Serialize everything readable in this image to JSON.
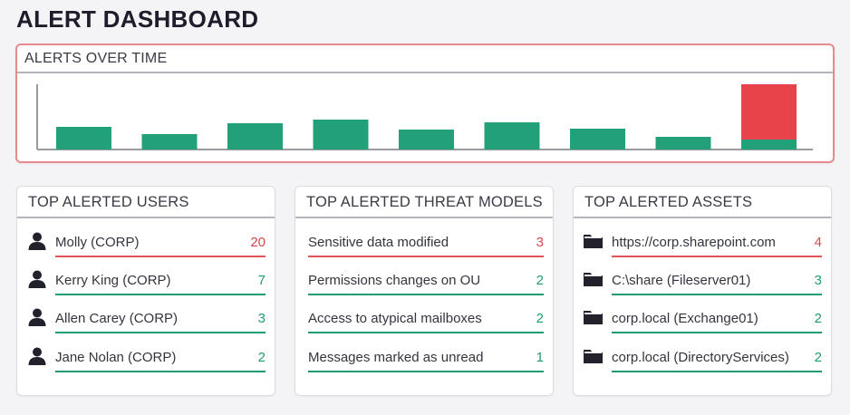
{
  "page": {
    "title": "ALERT DASHBOARD"
  },
  "colors": {
    "normal": "#21a07a",
    "alert": "#e8424a",
    "alert_border": "#e58a8f",
    "separator": "#b5b5bd"
  },
  "alerts_over_time": {
    "title": "ALERTS OVER TIME",
    "chart_data": {
      "type": "bar",
      "stacked": true,
      "categories": [
        "",
        "",
        "",
        "",
        "",
        "",
        "",
        "",
        ""
      ],
      "series": [
        {
          "color": "#21a07a",
          "values": [
            25,
            17,
            29,
            33,
            22,
            30,
            23,
            14,
            11
          ]
        },
        {
          "color": "#e8424a",
          "values": [
            0,
            0,
            0,
            0,
            0,
            0,
            0,
            0,
            61
          ]
        }
      ],
      "ylim": [
        0,
        72
      ],
      "grid": false,
      "legend": "none",
      "x_tick_labels": false,
      "y_tick_labels": false
    }
  },
  "top_users": {
    "title": "TOP ALERTED USERS",
    "icon": "user-icon",
    "items": [
      {
        "label": "Molly (CORP)",
        "count": "20",
        "level": "red"
      },
      {
        "label": "Kerry King (CORP)",
        "count": "7",
        "level": "green"
      },
      {
        "label": "Allen Carey (CORP)",
        "count": "3",
        "level": "green"
      },
      {
        "label": "Jane Nolan (CORP)",
        "count": "2",
        "level": "green"
      }
    ]
  },
  "top_threat_models": {
    "title": "TOP ALERTED THREAT MODELS",
    "items": [
      {
        "label": "Sensitive data modified",
        "count": "3",
        "level": "red"
      },
      {
        "label": "Permissions changes on OU",
        "count": "2",
        "level": "green"
      },
      {
        "label": "Access to atypical mailboxes",
        "count": "2",
        "level": "green"
      },
      {
        "label": "Messages marked as unread",
        "count": "1",
        "level": "green"
      }
    ]
  },
  "top_assets": {
    "title": "TOP ALERTED ASSETS",
    "icon": "folder-icon",
    "items": [
      {
        "label": "https://corp.sharepoint.com",
        "count": "4",
        "level": "red"
      },
      {
        "label": "C:\\share (Fileserver01)",
        "count": "3",
        "level": "green"
      },
      {
        "label": "corp.local (Exchange01)",
        "count": "2",
        "level": "green"
      },
      {
        "label": "corp.local (DirectoryServices)",
        "count": "2",
        "level": "green"
      }
    ]
  }
}
